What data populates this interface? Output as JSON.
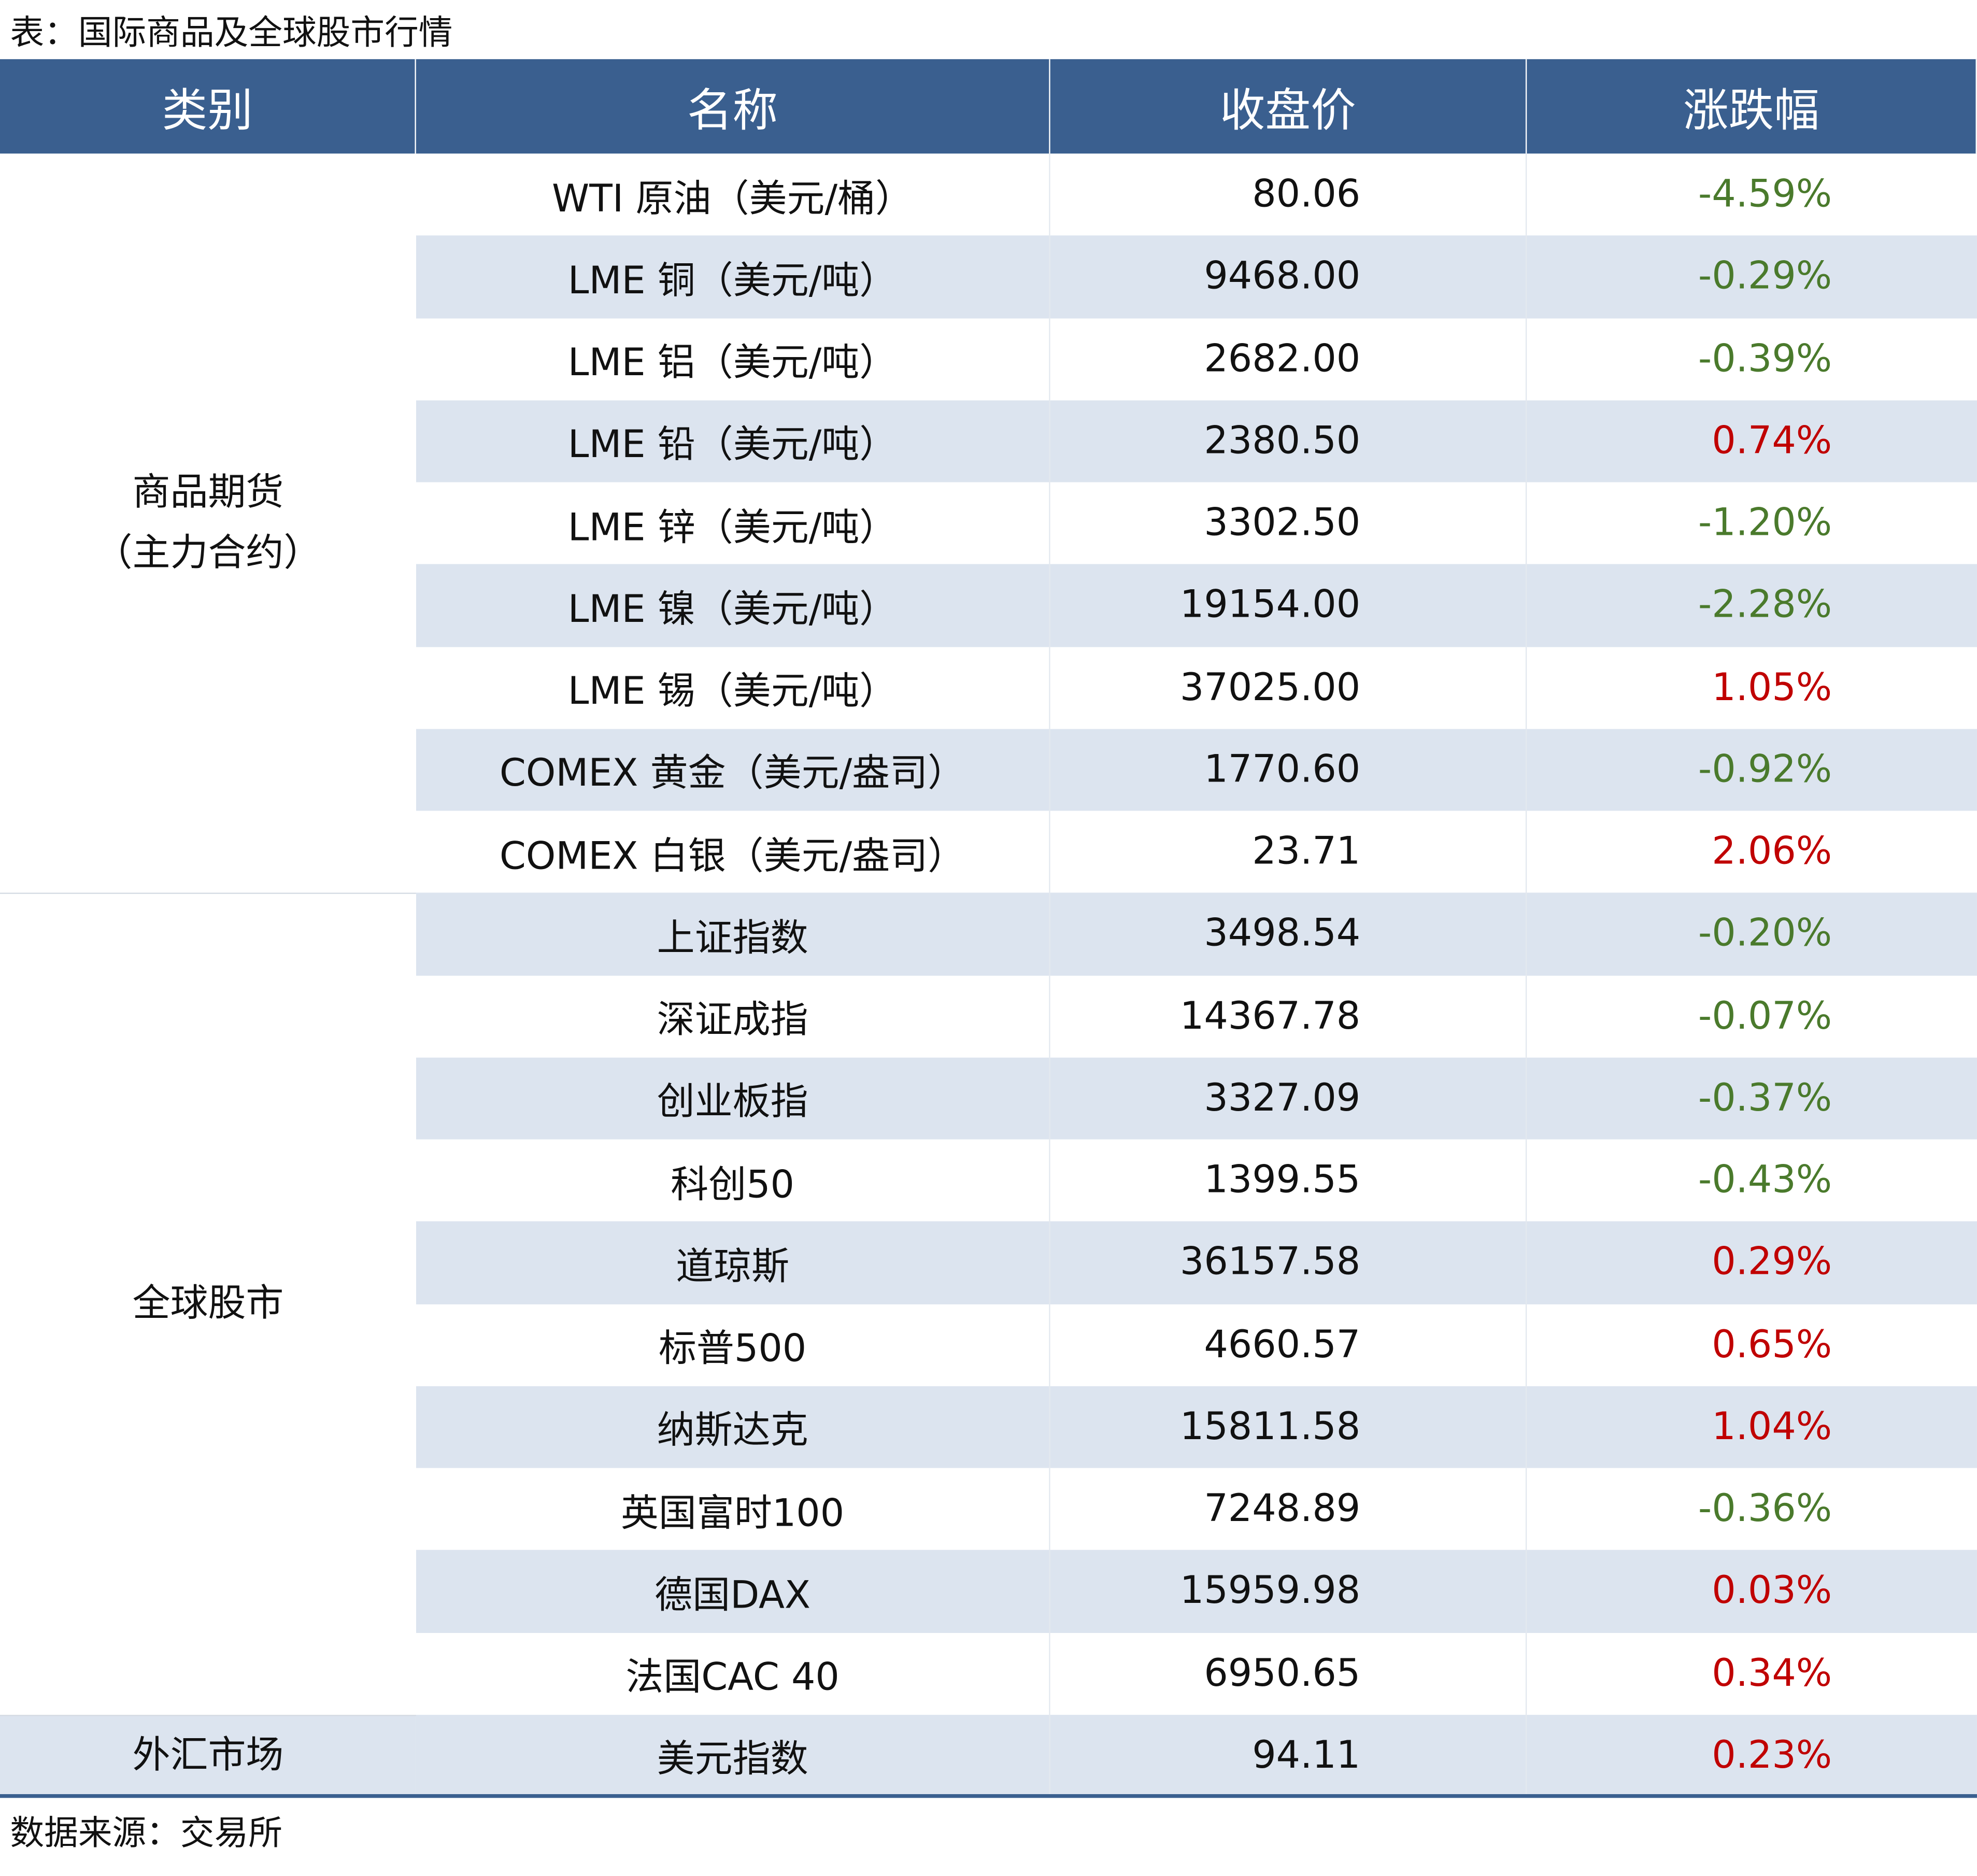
{
  "header": {
    "title": "表：国际商品及全球股市行情"
  },
  "table": {
    "columns": [
      "类别",
      "名称",
      "收盘价",
      "涨跌幅"
    ],
    "groups": [
      {
        "label": [
          "商品期货",
          "（主力合约）"
        ],
        "rows": [
          [
            "WTI 原油（美元/桶）",
            "80.06",
            "-4.59%"
          ],
          [
            "LME 铜（美元/吨）",
            "9468.00",
            "-0.29%"
          ],
          [
            "LME 铝（美元/吨）",
            "2682.00",
            "-0.39%"
          ],
          [
            "LME 铅（美元/吨）",
            "2380.50",
            "0.74%"
          ],
          [
            "LME 锌（美元/吨）",
            "3302.50",
            "-1.20%"
          ],
          [
            "LME 镍（美元/吨）",
            "19154.00",
            "-2.28%"
          ],
          [
            "LME 锡（美元/吨）",
            "37025.00",
            "1.05%"
          ],
          [
            "COMEX 黄金（美元/盎司）",
            "1770.60",
            "-0.92%"
          ],
          [
            "COMEX 白银（美元/盎司）",
            "23.71",
            "2.06%"
          ]
        ]
      },
      {
        "label": [
          "全球股市"
        ],
        "rows": [
          [
            "上证指数",
            "3498.54",
            "-0.20%"
          ],
          [
            "深证成指",
            "14367.78",
            "-0.07%"
          ],
          [
            "创业板指",
            "3327.09",
            "-0.37%"
          ],
          [
            "科创50",
            "1399.55",
            "-0.43%"
          ],
          [
            "道琼斯",
            "36157.58",
            "0.29%"
          ],
          [
            "标普500",
            "4660.57",
            "0.65%"
          ],
          [
            "纳斯达克",
            "15811.58",
            "1.04%"
          ],
          [
            "英国富时100",
            "7248.89",
            "-0.36%"
          ],
          [
            "德国DAX",
            "15959.98",
            "0.03%"
          ],
          [
            "法国CAC 40",
            "6950.65",
            "0.34%"
          ]
        ]
      },
      {
        "label": [
          "外汇市场"
        ],
        "rows": [
          [
            "美元指数",
            "94.11",
            "0.23%"
          ]
        ]
      }
    ]
  },
  "footer": {
    "source": "数据来源：交易所"
  }
}
